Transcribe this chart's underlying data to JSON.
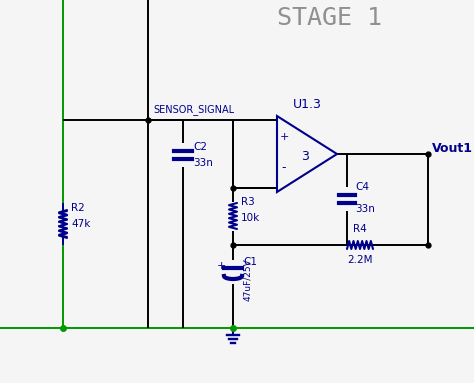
{
  "title": "STAGE 1",
  "title_color": "#909090",
  "title_fontsize": 18,
  "cc": "#00008B",
  "wc": "#000000",
  "gc": "#009900",
  "bg": "#F5F5F5",
  "sensor_signal_label": "SENSOR_SIGNAL",
  "vout1_label": "Vout1",
  "u13_label": "U1.3",
  "R2_label": "R2",
  "R2_val": "47k",
  "C2_label": "C2",
  "C2_val": "33n",
  "R3_label": "R3",
  "R3_val": "10k",
  "C1_label": "C1",
  "C1_val": "47uF/25V",
  "C4_label": "C4",
  "C4_val": "33n",
  "R4_label": "R4",
  "R4_val": "2.2M"
}
